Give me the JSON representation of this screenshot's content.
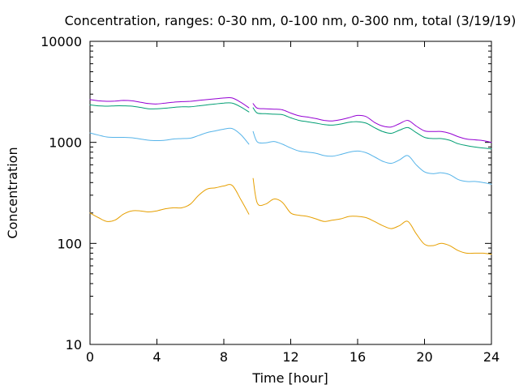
{
  "chart_data": {
    "type": "line",
    "title": "Concentration, ranges: 0-30 nm, 0-100 nm, 0-300 nm, total (3/19/19)",
    "xlabel": "Time [hour]",
    "ylabel": "Concentration",
    "xlim": [
      0,
      24
    ],
    "ylim": [
      10,
      10000
    ],
    "yscale": "log",
    "grid": false,
    "legend": "none",
    "x_ticks": [
      "0",
      "4",
      "8",
      "12",
      "16",
      "20",
      "24"
    ],
    "y_ticks": [
      "10",
      "100",
      "1000",
      "10000"
    ],
    "x_tick_values": [
      0,
      4,
      8,
      12,
      16,
      20,
      24
    ],
    "y_tick_values": [
      10,
      100,
      1000,
      10000
    ],
    "series": [
      {
        "color": "#e69f00",
        "x": [
          0,
          0.5,
          1,
          1.5,
          2,
          2.5,
          3,
          3.5,
          4,
          4.5,
          5,
          5.5,
          6,
          6.5,
          7,
          7.5,
          8,
          8.5,
          9,
          9.5,
          null,
          9.75,
          10,
          10.5,
          11,
          11.5,
          12,
          12.5,
          13,
          13.5,
          14,
          14.5,
          15,
          15.5,
          16,
          16.5,
          17,
          17.5,
          18,
          18.5,
          19,
          19.5,
          20,
          20.5,
          21,
          21.5,
          22,
          22.5,
          23,
          23.5,
          24
        ],
        "y": [
          200,
          180,
          165,
          170,
          195,
          210,
          210,
          205,
          210,
          220,
          225,
          225,
          245,
          300,
          345,
          355,
          370,
          375,
          275,
          195,
          null,
          440,
          250,
          245,
          275,
          255,
          200,
          190,
          185,
          175,
          165,
          170,
          175,
          185,
          185,
          180,
          165,
          150,
          140,
          150,
          165,
          125,
          98,
          95,
          100,
          95,
          85,
          80,
          80,
          80,
          78
        ]
      },
      {
        "color": "#56b4e9",
        "x": [
          0,
          0.5,
          1,
          1.5,
          2,
          2.5,
          3,
          3.5,
          4,
          4.5,
          5,
          5.5,
          6,
          6.5,
          7,
          7.5,
          8,
          8.5,
          9,
          9.5,
          null,
          9.75,
          10,
          10.5,
          11,
          11.5,
          12,
          12.5,
          13,
          13.5,
          14,
          14.5,
          15,
          15.5,
          16,
          16.5,
          17,
          17.5,
          18,
          18.5,
          19,
          19.5,
          20,
          20.5,
          21,
          21.5,
          22,
          22.5,
          23,
          23.5,
          24
        ],
        "y": [
          1240,
          1180,
          1130,
          1120,
          1120,
          1110,
          1080,
          1050,
          1040,
          1050,
          1080,
          1090,
          1100,
          1170,
          1250,
          1300,
          1350,
          1370,
          1200,
          960,
          null,
          1280,
          1010,
          990,
          1020,
          960,
          880,
          820,
          800,
          780,
          740,
          730,
          760,
          800,
          820,
          790,
          720,
          650,
          620,
          670,
          740,
          600,
          510,
          490,
          500,
          480,
          430,
          410,
          410,
          400,
          385
        ]
      },
      {
        "color": "#009e73",
        "x": [
          0,
          0.5,
          1,
          1.5,
          2,
          2.5,
          3,
          3.5,
          4,
          4.5,
          5,
          5.5,
          6,
          6.5,
          7,
          7.5,
          8,
          8.5,
          9,
          9.5,
          null,
          9.75,
          10,
          10.5,
          11,
          11.5,
          12,
          12.5,
          13,
          13.5,
          14,
          14.5,
          15,
          15.5,
          16,
          16.5,
          17,
          17.5,
          18,
          18.5,
          19,
          19.5,
          20,
          20.5,
          21,
          21.5,
          22,
          22.5,
          23,
          23.5,
          24
        ],
        "y": [
          2350,
          2300,
          2280,
          2300,
          2300,
          2280,
          2220,
          2150,
          2150,
          2180,
          2220,
          2250,
          2250,
          2300,
          2350,
          2400,
          2450,
          2450,
          2250,
          2000,
          null,
          2200,
          1950,
          1920,
          1900,
          1880,
          1750,
          1650,
          1600,
          1550,
          1500,
          1480,
          1520,
          1580,
          1600,
          1550,
          1400,
          1280,
          1230,
          1320,
          1400,
          1250,
          1120,
          1090,
          1090,
          1050,
          970,
          930,
          900,
          880,
          860
        ]
      },
      {
        "color": "#9400d3",
        "x": [
          0,
          0.5,
          1,
          1.5,
          2,
          2.5,
          3,
          3.5,
          4,
          4.5,
          5,
          5.5,
          6,
          6.5,
          7,
          7.5,
          8,
          8.5,
          9,
          9.5,
          null,
          9.75,
          10,
          10.5,
          11,
          11.5,
          12,
          12.5,
          13,
          13.5,
          14,
          14.5,
          15,
          15.5,
          16,
          16.5,
          17,
          17.5,
          18,
          18.5,
          19,
          19.5,
          20,
          20.5,
          21,
          21.5,
          22,
          22.5,
          23,
          23.5,
          24
        ],
        "y": [
          2650,
          2580,
          2550,
          2560,
          2600,
          2580,
          2500,
          2420,
          2400,
          2450,
          2500,
          2530,
          2550,
          2600,
          2650,
          2700,
          2750,
          2750,
          2500,
          2200,
          null,
          2420,
          2180,
          2150,
          2130,
          2100,
          1950,
          1830,
          1780,
          1720,
          1650,
          1630,
          1680,
          1760,
          1850,
          1800,
          1580,
          1450,
          1420,
          1530,
          1650,
          1450,
          1300,
          1280,
          1280,
          1230,
          1140,
          1080,
          1060,
          1040,
          1000
        ]
      }
    ]
  }
}
